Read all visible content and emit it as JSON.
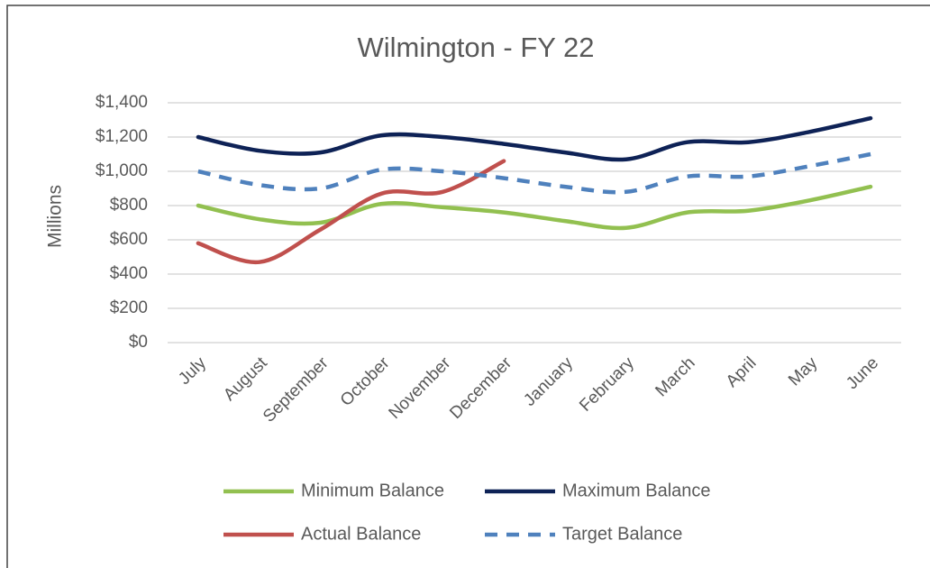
{
  "chart_data": {
    "type": "line",
    "title": "Wilmington - FY 22",
    "y_label": "Millions",
    "categories": [
      "July",
      "August",
      "September",
      "October",
      "November",
      "December",
      "January",
      "February",
      "March",
      "April",
      "May",
      "June"
    ],
    "series": [
      {
        "name": "Minimum Balance",
        "color": "#92c050",
        "values": [
          800,
          720,
          700,
          810,
          790,
          760,
          710,
          670,
          760,
          770,
          830,
          910
        ]
      },
      {
        "name": "Maximum Balance",
        "color": "#0e2256",
        "values": [
          1200,
          1120,
          1110,
          1210,
          1200,
          1160,
          1110,
          1070,
          1170,
          1170,
          1230,
          1310
        ]
      },
      {
        "name": "Actual Balance",
        "color": "#c0504d",
        "values": [
          580,
          470,
          660,
          870,
          880,
          1060,
          null,
          null,
          null,
          null,
          null,
          null
        ]
      },
      {
        "name": "Target Balance",
        "color": "#4f81bd",
        "dashed": true,
        "values": [
          1000,
          920,
          900,
          1010,
          1000,
          960,
          910,
          880,
          970,
          970,
          1030,
          1100
        ]
      }
    ],
    "ylim": [
      0,
      1400
    ],
    "yticks": [
      {
        "value": 0,
        "label": "$0"
      },
      {
        "value": 200,
        "label": "$200"
      },
      {
        "value": 400,
        "label": "$400"
      },
      {
        "value": 600,
        "label": "$600"
      },
      {
        "value": 800,
        "label": "$800"
      },
      {
        "value": 1000,
        "label": "$1,000"
      },
      {
        "value": 1200,
        "label": "$1,200"
      },
      {
        "value": 1400,
        "label": "$1,400"
      }
    ],
    "grid": true,
    "legend": "bottom"
  }
}
